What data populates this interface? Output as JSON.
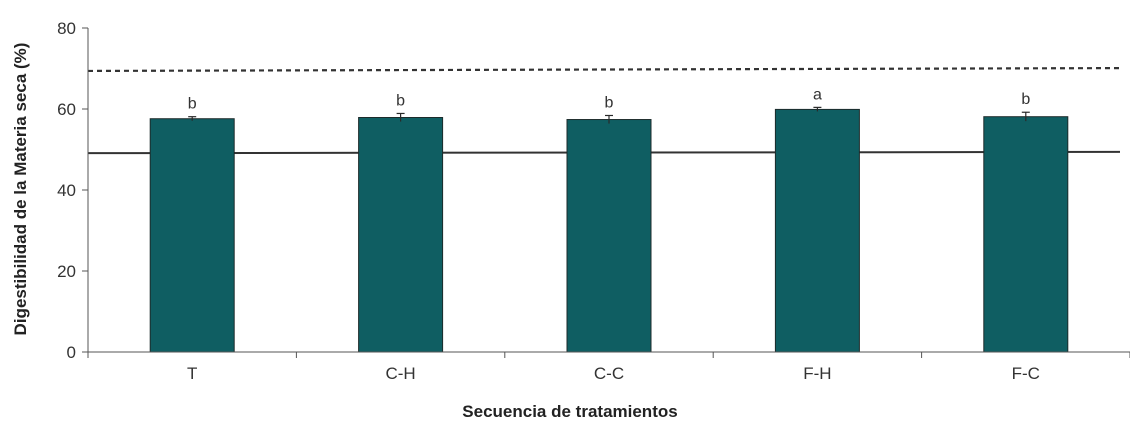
{
  "chart_data": {
    "type": "bar",
    "title": "",
    "xlabel": "Secuencia de tratamientos",
    "ylabel": "Digestibilidad de la Materia seca (%)",
    "ylim": [
      0,
      80
    ],
    "yticks": [
      "0",
      "20",
      "40",
      "60",
      "80"
    ],
    "categories": [
      "T",
      "C-H",
      "C-C",
      "F-H",
      "F-C"
    ],
    "values": [
      57.6,
      57.9,
      57.4,
      59.9,
      58.1
    ],
    "errors": [
      0.5,
      1.0,
      1.0,
      0.5,
      1.1
    ],
    "letters": [
      "b",
      "b",
      "b",
      "a",
      "b"
    ],
    "bar_color": "#0f5e62",
    "bar_edge_color": "#1c2b2b",
    "grid": false,
    "reference_lines": [
      {
        "style": "dashed",
        "y_start": 69.4,
        "y_end": 70.1
      },
      {
        "style": "solid",
        "y_start": 49.1,
        "y_end": 49.4
      }
    ]
  }
}
